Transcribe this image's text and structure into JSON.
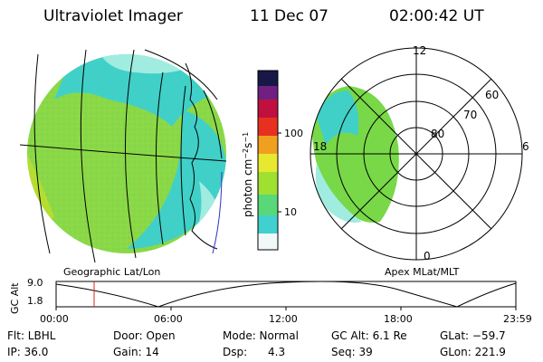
{
  "header": {
    "instrument": "Ultraviolet Imager",
    "date": "11 Dec 07",
    "time": "02:00:42 UT"
  },
  "panels": {
    "geo_label": "Geographic Lat/Lon",
    "polar_label": "Apex MLat/MLT"
  },
  "colorbar": {
    "unit": "photon cm",
    "unit_exp1": "−2",
    "unit_mid": "s",
    "unit_exp2": "−1",
    "ticks": [
      {
        "value": 100,
        "label": "100"
      },
      {
        "value": 10,
        "label": "10"
      }
    ]
  },
  "polar": {
    "mlat_labels": [
      "80",
      "70",
      "60"
    ],
    "mlt_labels": {
      "top": "12",
      "left": "18",
      "right": "6",
      "bottom": "0"
    }
  },
  "altitude_chart": {
    "ylabel": "GC Alt",
    "yticks": [
      "9.0",
      "1.8"
    ],
    "xticks": [
      "00:00",
      "06:00",
      "12:00",
      "18:00",
      "23:59"
    ],
    "current_time_marker": "02:00"
  },
  "info": {
    "flt": "Flt: LBHL",
    "door": "Door: Open",
    "mode": "Mode: Normal",
    "gcalt": "GC Alt: 6.1 Re",
    "glat": "GLat: −59.7",
    "ip": "IP: 36.0",
    "gain": "Gain: 14",
    "dsp_label": "Dsp:",
    "dsp_value": "4.3",
    "seq": "Seq: 39",
    "glon": "GLon: 221.9"
  }
}
